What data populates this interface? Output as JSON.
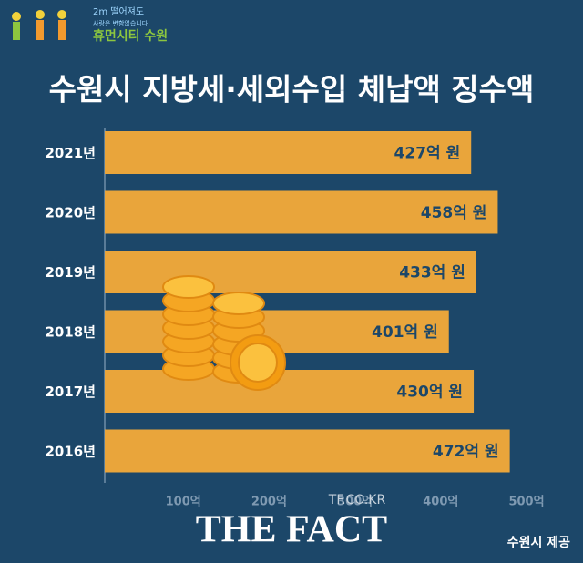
{
  "logo": {
    "line1": "2m 떨어져도",
    "line2": "사랑은 변함없습니다",
    "name": "휴먼시티 수원"
  },
  "chart_data": {
    "type": "hbar",
    "title": "수원시 지방세·세외수입 체납액 징수액",
    "categories": [
      "2021년",
      "2020년",
      "2019년",
      "2018년",
      "2017년",
      "2016년"
    ],
    "values": [
      427,
      458,
      433,
      401,
      430,
      472
    ],
    "value_labels": [
      "427억 원",
      "458억 원",
      "433억 원",
      "401억 원",
      "430억 원",
      "472억 원"
    ],
    "color": "#e9a53b",
    "xlim": [
      0,
      500
    ],
    "xticks": [
      {
        "value": 100,
        "label": "100억"
      },
      {
        "value": 200,
        "label": "200억"
      },
      {
        "value": 300,
        "label": "300억"
      },
      {
        "value": 400,
        "label": "400억"
      },
      {
        "value": 500,
        "label": "500억"
      }
    ]
  },
  "watermark": "TF.CO.KR",
  "brand": "THE FACT",
  "source": "수원시 제공"
}
